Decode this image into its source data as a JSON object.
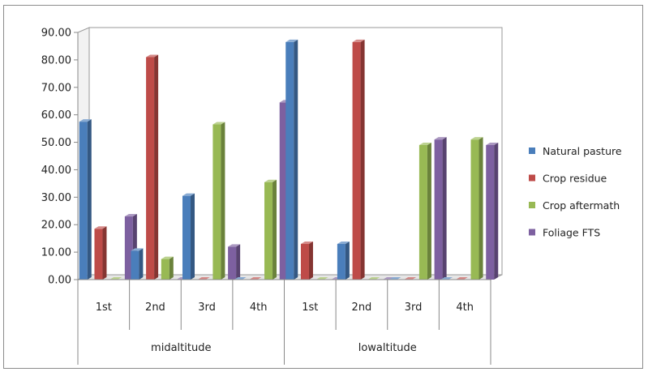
{
  "chart_data": {
    "type": "bar",
    "groups": [
      {
        "name": "midaltitude",
        "categories": [
          "1st",
          "2nd",
          "3rd",
          "4th"
        ]
      },
      {
        "name": "lowaltitude",
        "categories": [
          "1st",
          "2nd",
          "3rd",
          "4th"
        ]
      }
    ],
    "series": [
      {
        "name": "Natural pasture",
        "color": "#4a7ebb",
        "values": [
          57.5,
          10.5,
          30.5,
          0.0,
          86.5,
          13.0,
          0.0,
          0.0
        ]
      },
      {
        "name": "Crop residue",
        "color": "#be4b48",
        "values": [
          18.5,
          81.0,
          0.0,
          0.0,
          13.0,
          86.5,
          0.0,
          0.0
        ]
      },
      {
        "name": "Crop aftermath",
        "color": "#98b954",
        "values": [
          0.0,
          7.5,
          56.5,
          35.5,
          0.0,
          0.0,
          49.0,
          51.0
        ]
      },
      {
        "name": "Foliage FTS",
        "color": "#7d60a0",
        "values": [
          23.0,
          0.0,
          12.0,
          64.5,
          0.0,
          0.0,
          51.0,
          49.0
        ]
      }
    ],
    "yticks": [
      "0.00",
      "10.00",
      "20.00",
      "30.00",
      "40.00",
      "50.00",
      "60.00",
      "70.00",
      "80.00",
      "90.00"
    ],
    "ylim": [
      0,
      90
    ],
    "grid": false,
    "legend_position": "right"
  }
}
